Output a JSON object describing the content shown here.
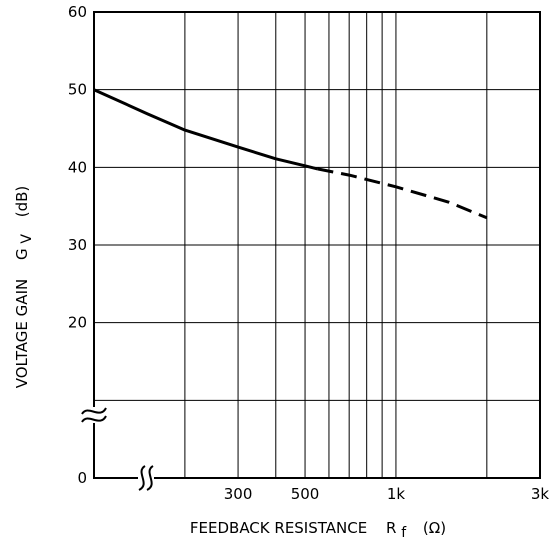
{
  "chart_data": {
    "type": "line",
    "xlabel": "FEEDBACK RESISTANCE",
    "xlabel_symbol": "R",
    "xlabel_subscript": "f",
    "xlabel_unit": "(Ω)",
    "ylabel": "VOLTAGE GAIN",
    "ylabel_symbol": "G",
    "ylabel_subscript": "V",
    "ylabel_unit": "(dB)",
    "x_scale": "log",
    "xlim": [
      100,
      3000
    ],
    "ylim": [
      0,
      60
    ],
    "grid": true,
    "x_tick_labels": [
      {
        "value": 300,
        "label": "300"
      },
      {
        "value": 500,
        "label": "500"
      },
      {
        "value": 1000,
        "label": "1k"
      },
      {
        "value": 3000,
        "label": "3k"
      }
    ],
    "x_gridlines": [
      200,
      300,
      400,
      500,
      600,
      700,
      800,
      900,
      1000,
      2000
    ],
    "y_ticks": [
      0,
      10,
      20,
      30,
      40,
      50,
      60
    ],
    "y_tick_labels": [
      {
        "value": 0,
        "label": "0"
      },
      {
        "value": 20,
        "label": "20"
      },
      {
        "value": 30,
        "label": "30"
      },
      {
        "value": 40,
        "label": "40"
      },
      {
        "value": 50,
        "label": "50"
      },
      {
        "value": 60,
        "label": "60"
      }
    ],
    "axis_breaks": [
      "y",
      "x"
    ],
    "series": [
      {
        "style": "solid",
        "color": "#000000",
        "points": [
          [
            100,
            50
          ],
          [
            150,
            46.9
          ],
          [
            200,
            44.8
          ],
          [
            300,
            42.6
          ],
          [
            400,
            41.1
          ],
          [
            500,
            40.2
          ],
          [
            550,
            39.8
          ]
        ]
      },
      {
        "style": "dashed",
        "color": "#000000",
        "points": [
          [
            550,
            39.8
          ],
          [
            700,
            39
          ],
          [
            1000,
            37.5
          ],
          [
            1500,
            35.5
          ],
          [
            2000,
            33.5
          ]
        ]
      }
    ]
  }
}
